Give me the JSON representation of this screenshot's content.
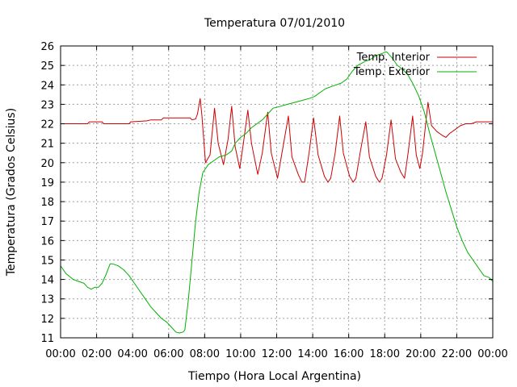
{
  "chart_data": {
    "type": "line",
    "title": "Temperatura 07/01/2010",
    "xlabel": "Tiempo (Hora Local Argentina)",
    "ylabel": "Temperatura (Grados Celsius)",
    "xlim": [
      0,
      24
    ],
    "ylim": [
      11,
      26
    ],
    "grid": true,
    "legend_position": "top-right",
    "x_ticks": [
      {
        "value": 0,
        "label": "00:00"
      },
      {
        "value": 2,
        "label": "02:00"
      },
      {
        "value": 4,
        "label": "04:00"
      },
      {
        "value": 6,
        "label": "06:00"
      },
      {
        "value": 8,
        "label": "08:00"
      },
      {
        "value": 10,
        "label": "10:00"
      },
      {
        "value": 12,
        "label": "12:00"
      },
      {
        "value": 14,
        "label": "14:00"
      },
      {
        "value": 16,
        "label": "16:00"
      },
      {
        "value": 18,
        "label": "18:00"
      },
      {
        "value": 20,
        "label": "20:00"
      },
      {
        "value": 22,
        "label": "22:00"
      },
      {
        "value": 24,
        "label": "00:00"
      }
    ],
    "y_ticks": [
      {
        "value": 11,
        "label": "11"
      },
      {
        "value": 12,
        "label": "12"
      },
      {
        "value": 13,
        "label": "13"
      },
      {
        "value": 14,
        "label": "14"
      },
      {
        "value": 15,
        "label": "15"
      },
      {
        "value": 16,
        "label": "16"
      },
      {
        "value": 17,
        "label": "17"
      },
      {
        "value": 18,
        "label": "18"
      },
      {
        "value": 19,
        "label": "19"
      },
      {
        "value": 20,
        "label": "20"
      },
      {
        "value": 21,
        "label": "21"
      },
      {
        "value": 22,
        "label": "22"
      },
      {
        "value": 23,
        "label": "23"
      },
      {
        "value": 24,
        "label": "24"
      },
      {
        "value": 25,
        "label": "25"
      },
      {
        "value": 26,
        "label": "26"
      }
    ],
    "series": [
      {
        "name": "Temp. Interior",
        "color": "#cc0000",
        "points": [
          [
            0,
            22.0
          ],
          [
            1.5,
            22.0
          ],
          [
            1.6,
            22.1
          ],
          [
            2.3,
            22.1
          ],
          [
            2.4,
            22.0
          ],
          [
            3.8,
            22.0
          ],
          [
            3.9,
            22.1
          ],
          [
            4.8,
            22.15
          ],
          [
            5.0,
            22.2
          ],
          [
            5.6,
            22.2
          ],
          [
            5.7,
            22.3
          ],
          [
            7.2,
            22.3
          ],
          [
            7.3,
            22.2
          ],
          [
            7.5,
            22.25
          ],
          [
            7.6,
            22.5
          ],
          [
            7.75,
            23.3
          ],
          [
            7.85,
            22.4
          ],
          [
            8.05,
            20.0
          ],
          [
            8.3,
            20.4
          ],
          [
            8.55,
            22.8
          ],
          [
            8.75,
            21.0
          ],
          [
            9.05,
            19.9
          ],
          [
            9.3,
            21.2
          ],
          [
            9.5,
            22.9
          ],
          [
            9.7,
            20.8
          ],
          [
            9.95,
            19.7
          ],
          [
            10.15,
            21.0
          ],
          [
            10.4,
            22.7
          ],
          [
            10.6,
            21.0
          ],
          [
            10.95,
            19.4
          ],
          [
            11.2,
            20.5
          ],
          [
            11.5,
            22.6
          ],
          [
            11.7,
            20.5
          ],
          [
            12.05,
            19.2
          ],
          [
            12.35,
            20.8
          ],
          [
            12.65,
            22.4
          ],
          [
            12.85,
            20.3
          ],
          [
            13.2,
            19.4
          ],
          [
            13.4,
            19.0
          ],
          [
            13.55,
            19.0
          ],
          [
            13.8,
            20.5
          ],
          [
            14.05,
            22.3
          ],
          [
            14.3,
            20.4
          ],
          [
            14.65,
            19.3
          ],
          [
            14.85,
            19.0
          ],
          [
            15.0,
            19.2
          ],
          [
            15.25,
            20.5
          ],
          [
            15.5,
            22.4
          ],
          [
            15.7,
            20.5
          ],
          [
            16.05,
            19.3
          ],
          [
            16.25,
            19.0
          ],
          [
            16.4,
            19.2
          ],
          [
            16.65,
            20.6
          ],
          [
            16.95,
            22.1
          ],
          [
            17.15,
            20.3
          ],
          [
            17.5,
            19.3
          ],
          [
            17.7,
            19.0
          ],
          [
            17.85,
            19.2
          ],
          [
            18.1,
            20.4
          ],
          [
            18.35,
            22.2
          ],
          [
            18.6,
            20.2
          ],
          [
            18.9,
            19.5
          ],
          [
            19.1,
            19.2
          ],
          [
            19.3,
            20.5
          ],
          [
            19.55,
            22.4
          ],
          [
            19.75,
            20.4
          ],
          [
            19.95,
            19.7
          ],
          [
            20.1,
            20.5
          ],
          [
            20.4,
            23.1
          ],
          [
            20.6,
            21.9
          ],
          [
            20.9,
            21.6
          ],
          [
            21.2,
            21.4
          ],
          [
            21.4,
            21.3
          ],
          [
            21.6,
            21.5
          ],
          [
            21.9,
            21.7
          ],
          [
            22.2,
            21.9
          ],
          [
            22.5,
            22.0
          ],
          [
            22.8,
            22.0
          ],
          [
            23.1,
            22.1
          ],
          [
            24.0,
            22.1
          ]
        ]
      },
      {
        "name": "Temp. Exterior",
        "color": "#00b000",
        "points": [
          [
            0,
            14.7
          ],
          [
            0.3,
            14.3
          ],
          [
            0.7,
            14.0
          ],
          [
            1.0,
            13.9
          ],
          [
            1.3,
            13.8
          ],
          [
            1.5,
            13.6
          ],
          [
            1.7,
            13.5
          ],
          [
            1.9,
            13.6
          ],
          [
            2.1,
            13.6
          ],
          [
            2.3,
            13.8
          ],
          [
            2.5,
            14.2
          ],
          [
            2.75,
            14.8
          ],
          [
            2.9,
            14.8
          ],
          [
            3.2,
            14.7
          ],
          [
            3.5,
            14.5
          ],
          [
            3.8,
            14.2
          ],
          [
            4.1,
            13.8
          ],
          [
            4.4,
            13.4
          ],
          [
            4.7,
            13.0
          ],
          [
            5.0,
            12.6
          ],
          [
            5.3,
            12.3
          ],
          [
            5.6,
            12.0
          ],
          [
            5.9,
            11.8
          ],
          [
            6.1,
            11.6
          ],
          [
            6.4,
            11.3
          ],
          [
            6.6,
            11.25
          ],
          [
            6.8,
            11.3
          ],
          [
            6.9,
            11.4
          ],
          [
            7.1,
            13.0
          ],
          [
            7.3,
            15.0
          ],
          [
            7.5,
            17.0
          ],
          [
            7.7,
            18.5
          ],
          [
            7.9,
            19.5
          ],
          [
            8.2,
            19.9
          ],
          [
            8.5,
            20.1
          ],
          [
            8.8,
            20.3
          ],
          [
            9.2,
            20.4
          ],
          [
            9.5,
            20.6
          ],
          [
            9.7,
            21.0
          ],
          [
            10.0,
            21.3
          ],
          [
            10.3,
            21.5
          ],
          [
            10.6,
            21.8
          ],
          [
            10.9,
            22.0
          ],
          [
            11.2,
            22.2
          ],
          [
            11.5,
            22.5
          ],
          [
            11.8,
            22.8
          ],
          [
            12.2,
            22.9
          ],
          [
            12.6,
            23.0
          ],
          [
            13.0,
            23.1
          ],
          [
            13.4,
            23.2
          ],
          [
            13.8,
            23.3
          ],
          [
            14.1,
            23.4
          ],
          [
            14.4,
            23.6
          ],
          [
            14.7,
            23.8
          ],
          [
            15.0,
            23.9
          ],
          [
            15.3,
            24.0
          ],
          [
            15.6,
            24.1
          ],
          [
            15.9,
            24.3
          ],
          [
            16.2,
            24.7
          ],
          [
            16.5,
            25.0
          ],
          [
            16.9,
            25.2
          ],
          [
            17.2,
            25.3
          ],
          [
            17.5,
            25.5
          ],
          [
            17.8,
            25.6
          ],
          [
            18.1,
            25.7
          ],
          [
            18.4,
            25.4
          ],
          [
            18.7,
            25.0
          ],
          [
            19.0,
            24.8
          ],
          [
            19.3,
            24.5
          ],
          [
            19.6,
            24.0
          ],
          [
            19.9,
            23.4
          ],
          [
            20.2,
            22.6
          ],
          [
            20.5,
            21.5
          ],
          [
            20.8,
            20.5
          ],
          [
            21.1,
            19.5
          ],
          [
            21.4,
            18.5
          ],
          [
            21.7,
            17.6
          ],
          [
            22.0,
            16.7
          ],
          [
            22.3,
            16.0
          ],
          [
            22.6,
            15.4
          ],
          [
            22.9,
            15.0
          ],
          [
            23.2,
            14.6
          ],
          [
            23.5,
            14.2
          ],
          [
            23.8,
            14.1
          ],
          [
            24.0,
            13.9
          ]
        ]
      }
    ]
  }
}
